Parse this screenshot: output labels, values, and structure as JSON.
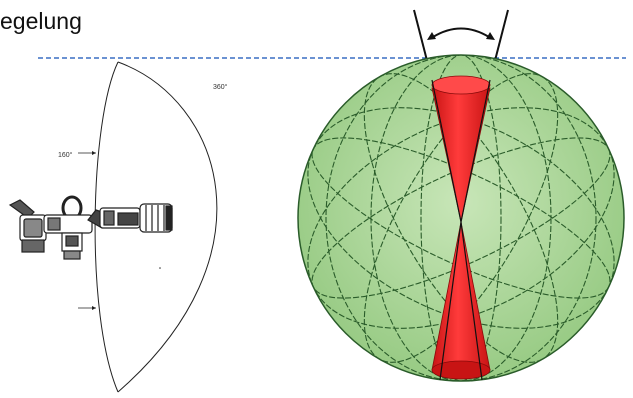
{
  "header": {
    "title": "egelung"
  },
  "left_figure": {
    "angle_label_outer": "360°",
    "angle_label_inner": "160°",
    "line_color": "#222222"
  },
  "right_figure": {
    "sphere_fill": "#a9d596",
    "sphere_stroke": "#2a5c2a",
    "cone_color": "#e51f1f",
    "reference_line_color": "#3a6fc4",
    "rotation_arrow_icon": "double-headed-arc-arrow-icon"
  }
}
